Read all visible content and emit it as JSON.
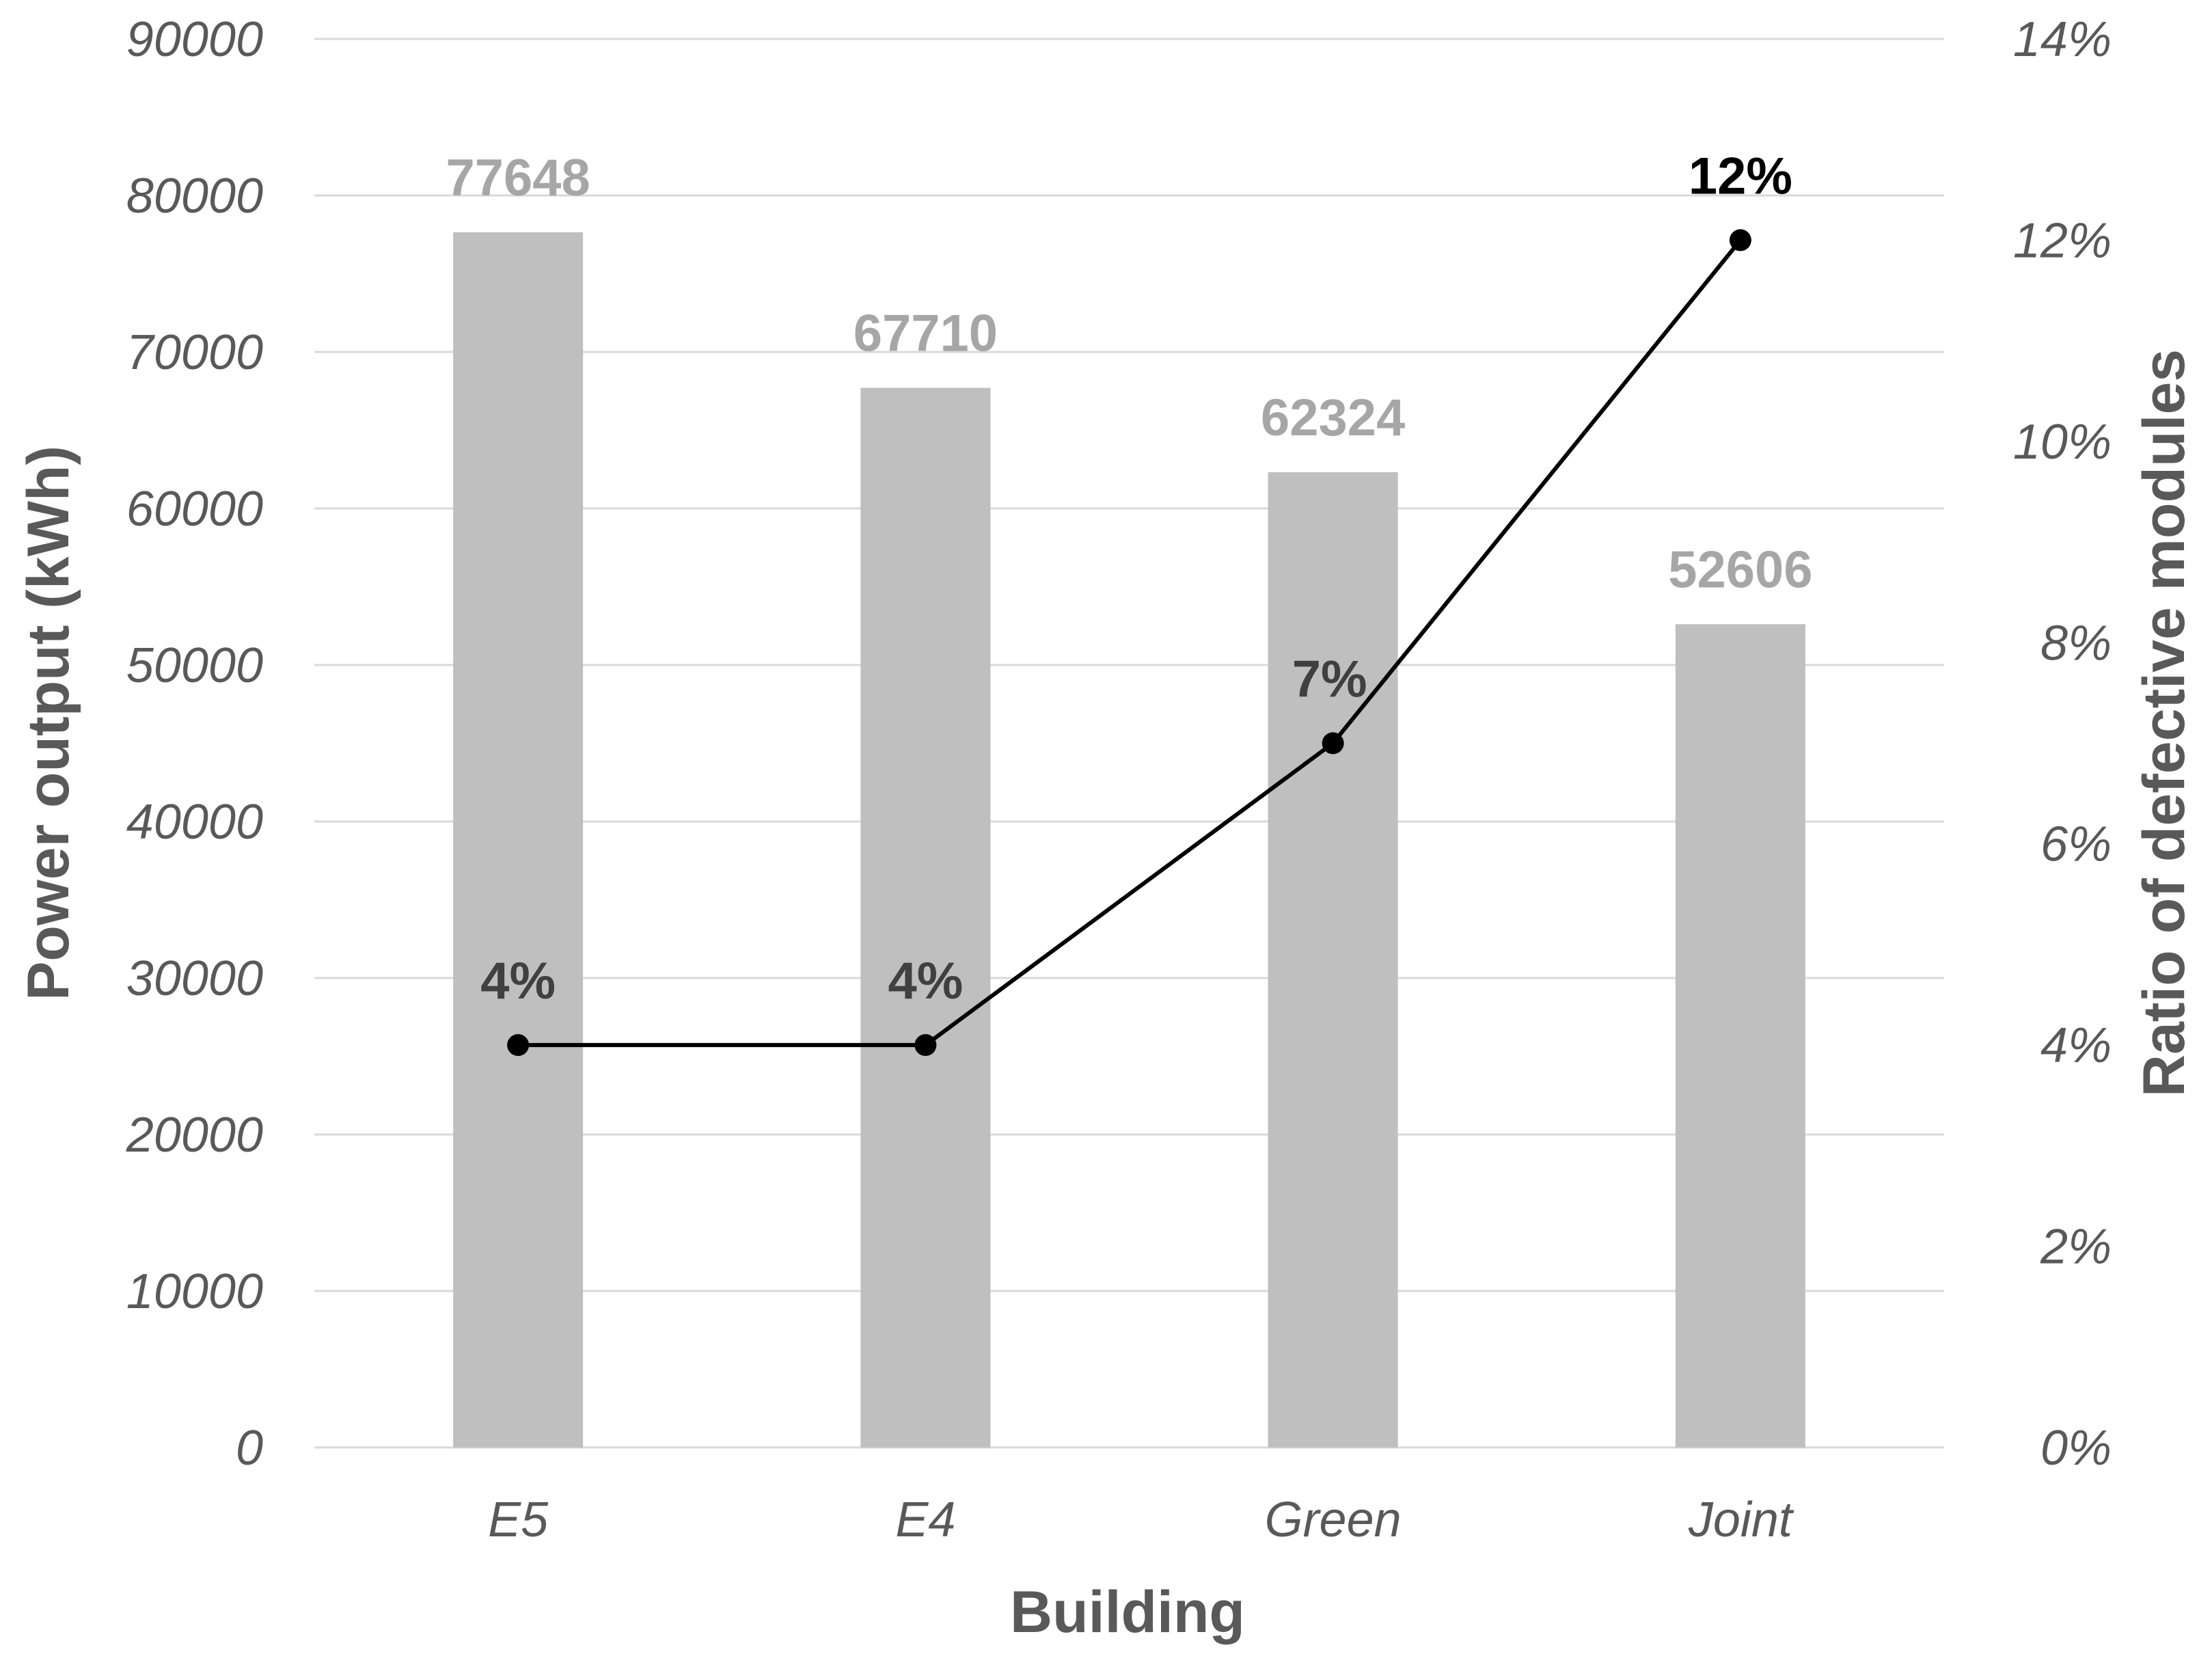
{
  "chart_data": {
    "type": "bar",
    "categories": [
      "E5",
      "E4",
      "Green",
      "Joint"
    ],
    "xlabel": "Building",
    "ylabel": "Power output (kWh)",
    "y2label": "Ratio of defective modules",
    "ylim": [
      0,
      90000
    ],
    "y2lim": [
      0,
      0.14
    ],
    "yticks": [
      "0",
      "10000",
      "20000",
      "30000",
      "40000",
      "50000",
      "60000",
      "70000",
      "80000",
      "90000"
    ],
    "y2ticks": [
      "0%",
      "2%",
      "4%",
      "6%",
      "8%",
      "10%",
      "12%",
      "14%"
    ],
    "grid": true,
    "series": [
      {
        "type": "bar",
        "axis": "left",
        "values": [
          77648,
          67710,
          62324,
          52606
        ],
        "labels": [
          "77648",
          "67710",
          "62324",
          "52606"
        ],
        "color": "#bfbfbf",
        "label_color": "#a6a6a6"
      },
      {
        "type": "line",
        "axis": "right",
        "values": [
          0.04,
          0.04,
          0.07,
          0.12
        ],
        "labels": [
          "4%",
          "4%",
          "7%",
          "12%"
        ],
        "color": "#000000"
      }
    ]
  }
}
